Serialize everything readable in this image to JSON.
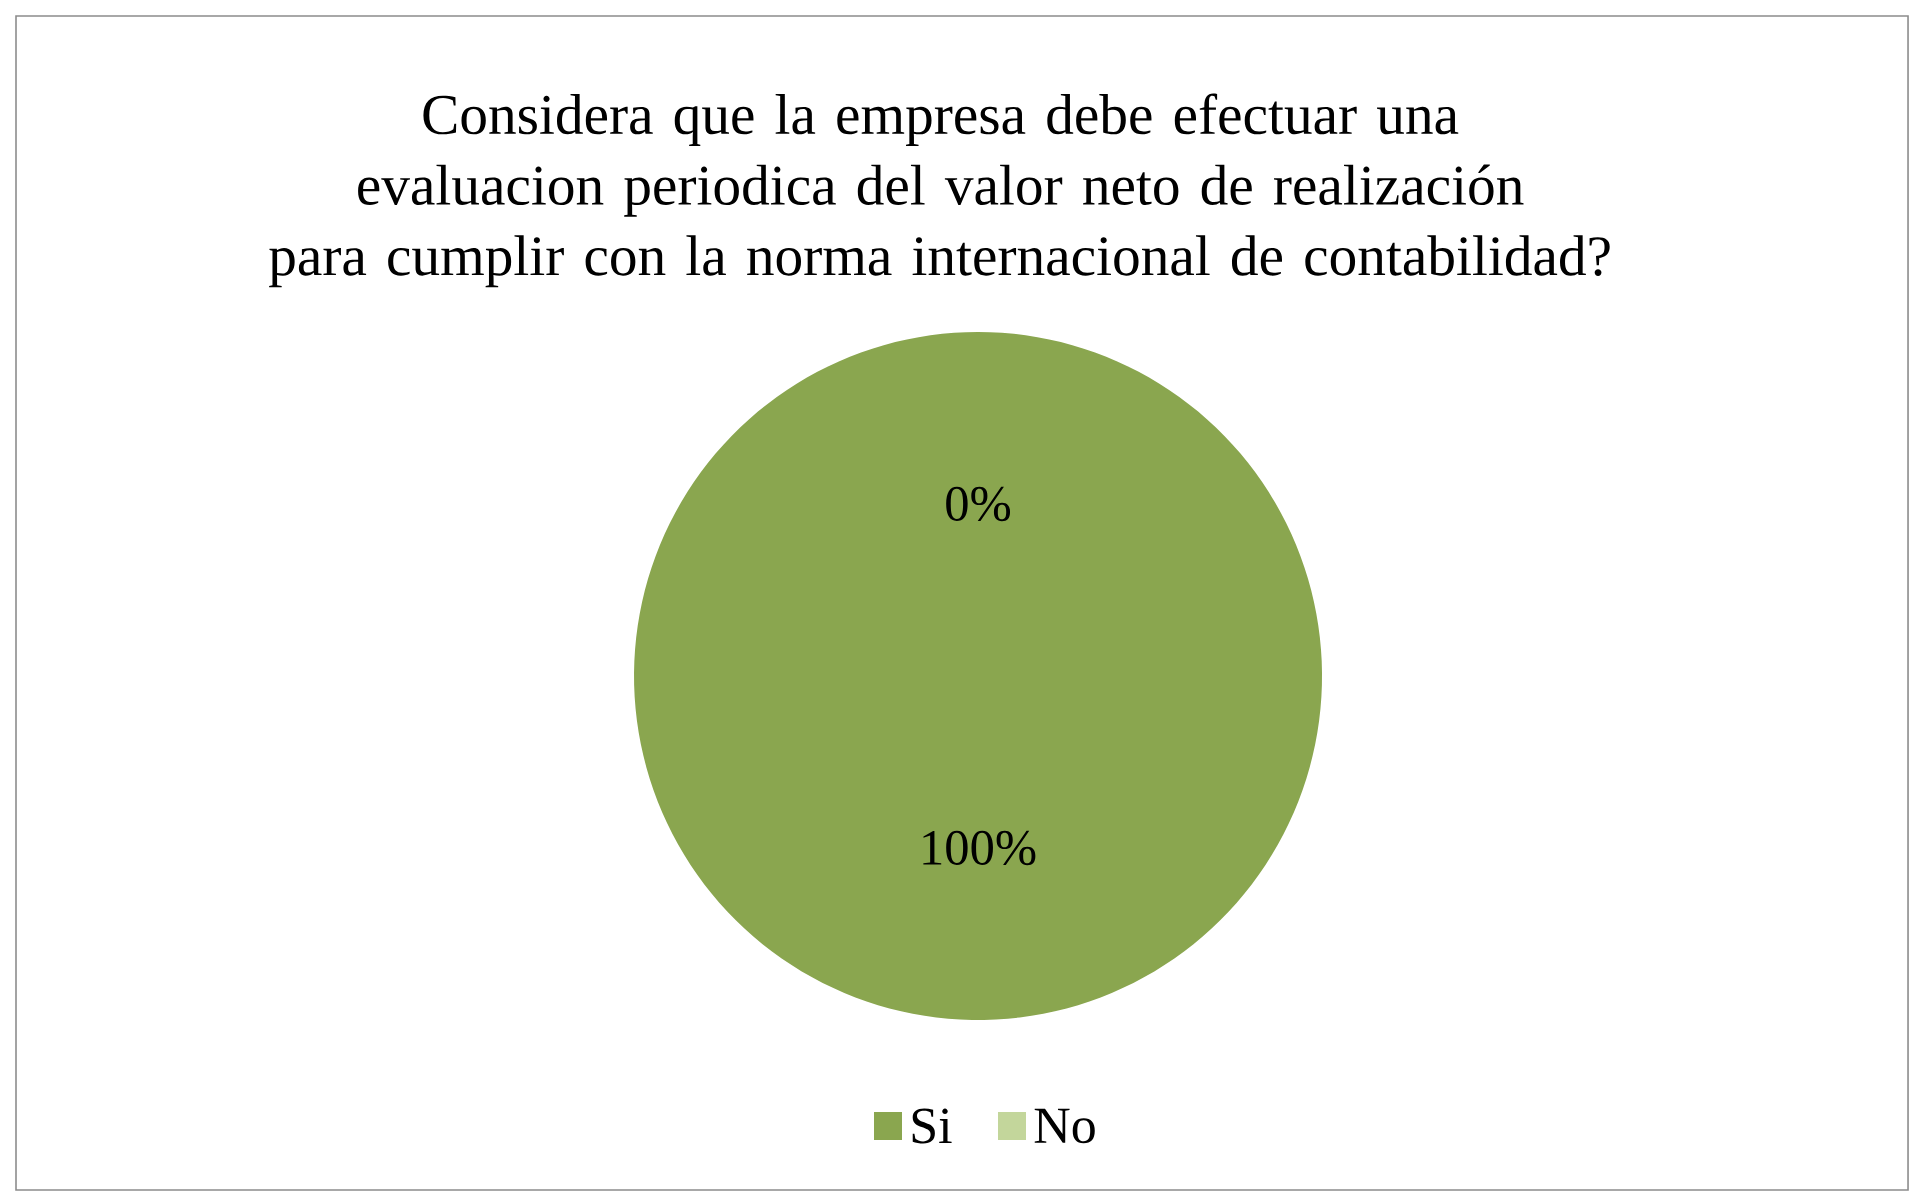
{
  "chart_data": {
    "type": "pie",
    "title": "Considera que la empresa debe efectuar una evaluacion periodica del valor neto de realización para cumplir con la norma internacional de contabilidad?",
    "categories": [
      "Si",
      "No"
    ],
    "values": [
      100,
      0
    ],
    "colors": [
      "#8aa64f",
      "#c3d69b"
    ],
    "value_labels": [
      "100%",
      "0%"
    ],
    "legend": "bottom"
  }
}
